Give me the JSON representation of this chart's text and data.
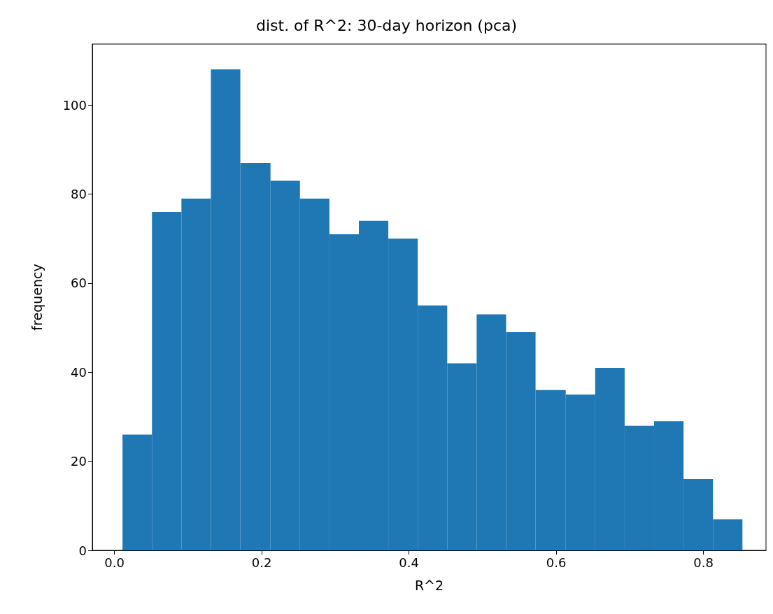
{
  "chart_data": {
    "type": "histogram",
    "title": "dist. of R^2: 30-day horizon (pca)",
    "xlabel": "R^2",
    "ylabel": "frequency",
    "color": "#1f77b4",
    "bins": [
      0.011,
      0.051,
      0.091,
      0.131,
      0.171,
      0.212,
      0.252,
      0.292,
      0.332,
      0.372,
      0.412,
      0.452,
      0.492,
      0.532,
      0.572,
      0.613,
      0.653,
      0.693,
      0.733,
      0.773,
      0.813,
      0.853
    ],
    "values": [
      26,
      76,
      79,
      108,
      87,
      83,
      79,
      71,
      74,
      70,
      55,
      42,
      53,
      49,
      36,
      35,
      41,
      28,
      29,
      16,
      7
    ],
    "xlim": [
      -0.03,
      0.885
    ],
    "ylim": [
      0,
      113.7
    ],
    "xticks": [
      {
        "value": 0,
        "label": "0.0"
      },
      0.2,
      0.4,
      0.6,
      0.8
    ],
    "yticks": [
      0,
      20,
      40,
      60,
      80,
      100
    ],
    "grid": false
  }
}
